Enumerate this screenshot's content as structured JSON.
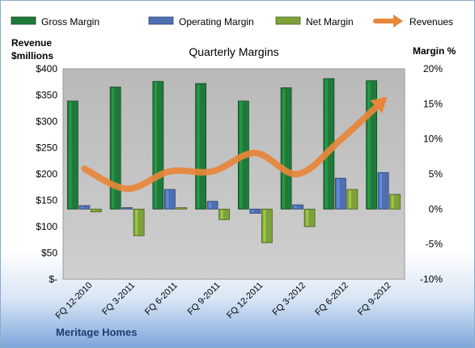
{
  "chart_data": {
    "type": "bar",
    "title": "Quarterly Margins",
    "company": "Meritage Homes",
    "y_left_label": [
      "Revenue",
      "$millions"
    ],
    "y_right_label": "Margin %",
    "categories": [
      "FQ 12-2010",
      "FQ 3-2011",
      "FQ 6-2011",
      "FQ 9-2011",
      "FQ 12-2011",
      "FQ 3-2012",
      "FQ 6-2012",
      "FQ 9-2012"
    ],
    "left_ticks": [
      "$-",
      "$50",
      "$100",
      "$150",
      "$200",
      "$250",
      "$300",
      "$350",
      "$400"
    ],
    "right_ticks": [
      "-10%",
      "-5%",
      "0%",
      "5%",
      "10%",
      "15%",
      "20%"
    ],
    "ylim_left": [
      0,
      400
    ],
    "ylim_right": [
      -10,
      20
    ],
    "series": [
      {
        "name": "Gross Margin",
        "axis": "right",
        "type": "bar",
        "color": "#1f7a3a",
        "values": [
          15.4,
          17.4,
          18.2,
          17.9,
          15.4,
          17.3,
          18.6,
          18.3
        ]
      },
      {
        "name": "Operating Margin",
        "axis": "right",
        "type": "bar",
        "color": "#4f6fb3",
        "values": [
          0.5,
          0.2,
          2.8,
          1.1,
          -0.6,
          0.6,
          4.4,
          5.2
        ]
      },
      {
        "name": "Net Margin",
        "axis": "right",
        "type": "bar",
        "color": "#7ea13a",
        "values": [
          -0.4,
          -3.8,
          0.2,
          -1.5,
          -4.8,
          -2.5,
          2.8,
          2.1
        ]
      },
      {
        "name": "Revenues",
        "axis": "left",
        "type": "line",
        "color": "#e8863a",
        "values": [
          210,
          172,
          205,
          205,
          240,
          200,
          265,
          340
        ]
      }
    ],
    "legend_position": "top",
    "grid": false
  }
}
